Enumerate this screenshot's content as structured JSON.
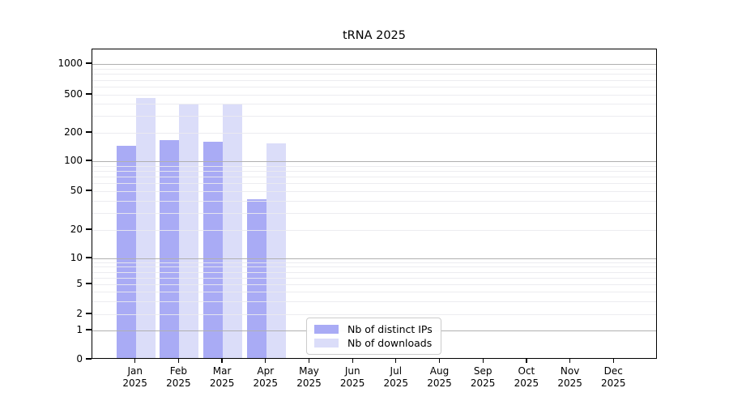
{
  "chart_data": {
    "type": "bar",
    "title": "tRNA 2025",
    "x_axis": {
      "categories": [
        "Jan",
        "Feb",
        "Mar",
        "Apr",
        "May",
        "Jun",
        "Jul",
        "Aug",
        "Sep",
        "Oct",
        "Nov",
        "Dec"
      ],
      "year": "2025"
    },
    "y_axis": {
      "scale": "symlog",
      "ticks": [
        0,
        1,
        2,
        5,
        10,
        20,
        50,
        100,
        200,
        500,
        1000
      ],
      "range": [
        0,
        1400
      ]
    },
    "series": [
      {
        "name": "Nb of distinct IPs",
        "color": "#a9abf5",
        "values": [
          140,
          160,
          155,
          40,
          0,
          0,
          0,
          0,
          0,
          0,
          0,
          0
        ]
      },
      {
        "name": "Nb of downloads",
        "color": "#dbddf9",
        "values": [
          445,
          380,
          378,
          150,
          0,
          0,
          0,
          0,
          0,
          0,
          0,
          0
        ]
      }
    ],
    "legend": {
      "position": "lower center"
    },
    "grid": {
      "minor_color": "#eaeaee",
      "major_color": "#b0b0b0",
      "major_at": [
        1,
        10,
        100,
        1000
      ]
    }
  }
}
